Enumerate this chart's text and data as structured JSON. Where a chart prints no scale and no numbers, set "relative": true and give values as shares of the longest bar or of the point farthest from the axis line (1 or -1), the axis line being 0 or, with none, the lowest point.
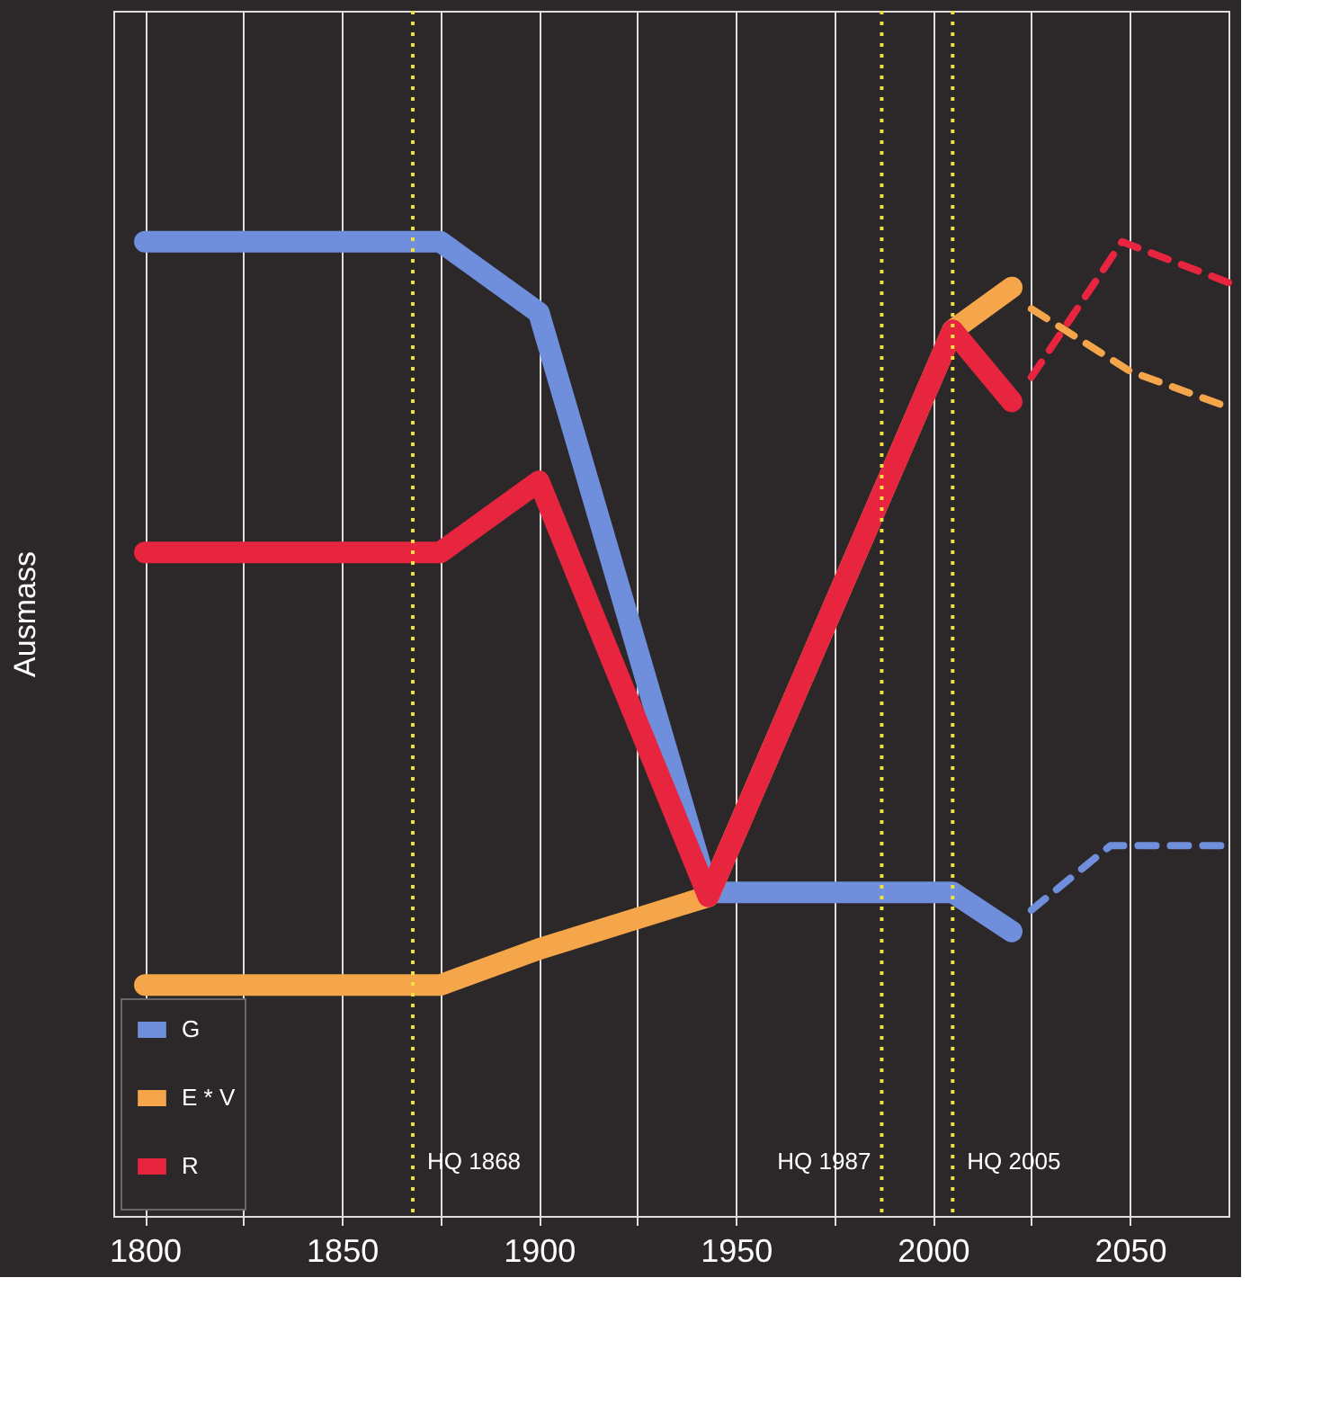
{
  "chart_data": {
    "type": "line",
    "relative": true,
    "ylabel": "Ausmass",
    "xlim": [
      1792,
      2075
    ],
    "xticks": [
      1800,
      {
        "value": 1825,
        "label": null
      },
      1850,
      {
        "value": 1875,
        "label": null
      },
      1900,
      {
        "value": 1925,
        "label": null
      },
      1950,
      {
        "value": 1975,
        "label": null
      },
      2000,
      {
        "value": 2025,
        "label": null
      },
      2050
    ],
    "grid": "x",
    "legend": "bottom left",
    "tick_labels": "x",
    "marker": "none",
    "series": [
      {
        "name": "G",
        "color": "#6f8fdc",
        "line_style": "solid",
        "x": [
          1800,
          1875,
          1900,
          1943,
          2005,
          2020
        ],
        "values": [
          1.0,
          1.0,
          0.927,
          0.332,
          0.332,
          0.292
        ]
      },
      {
        "name": "E * V",
        "color": "#f5a54a",
        "line_style": "solid",
        "x": [
          1800,
          1875,
          1900,
          1943,
          2005,
          2020
        ],
        "values": [
          0.237,
          0.237,
          0.274,
          0.328,
          0.909,
          0.953
        ]
      },
      {
        "name": "R",
        "color": "#e8253f",
        "line_style": "solid",
        "x": [
          1800,
          1875,
          1900,
          1943,
          2005,
          2020
        ],
        "values": [
          0.681,
          0.681,
          0.754,
          0.328,
          0.909,
          0.836
        ]
      },
      {
        "color": "#6f8fdc",
        "line_style": "dashed",
        "x": [
          2025,
          2045,
          2075
        ],
        "values": [
          0.314,
          0.38,
          0.38
        ]
      },
      {
        "color": "#f5a54a",
        "line_style": "dashed",
        "x": [
          2025,
          2050,
          2075
        ],
        "values": [
          0.931,
          0.867,
          0.83
        ]
      },
      {
        "color": "#e8253f",
        "line_style": "dashed",
        "x": [
          2025,
          2048,
          2075
        ],
        "values": [
          0.861,
          1.0,
          0.958
        ]
      }
    ],
    "ref_lines": [
      {
        "axis": "x",
        "value": 1868,
        "label": "HQ 1868",
        "color": "#f0e040",
        "line_style": "dotted"
      },
      {
        "axis": "x",
        "value": 1987,
        "label": "HQ 1987",
        "color": "#f0e040",
        "line_style": "dotted"
      },
      {
        "axis": "x",
        "value": 2005,
        "label": "HQ 2005",
        "color": "#f0e040",
        "line_style": "dotted"
      }
    ]
  }
}
